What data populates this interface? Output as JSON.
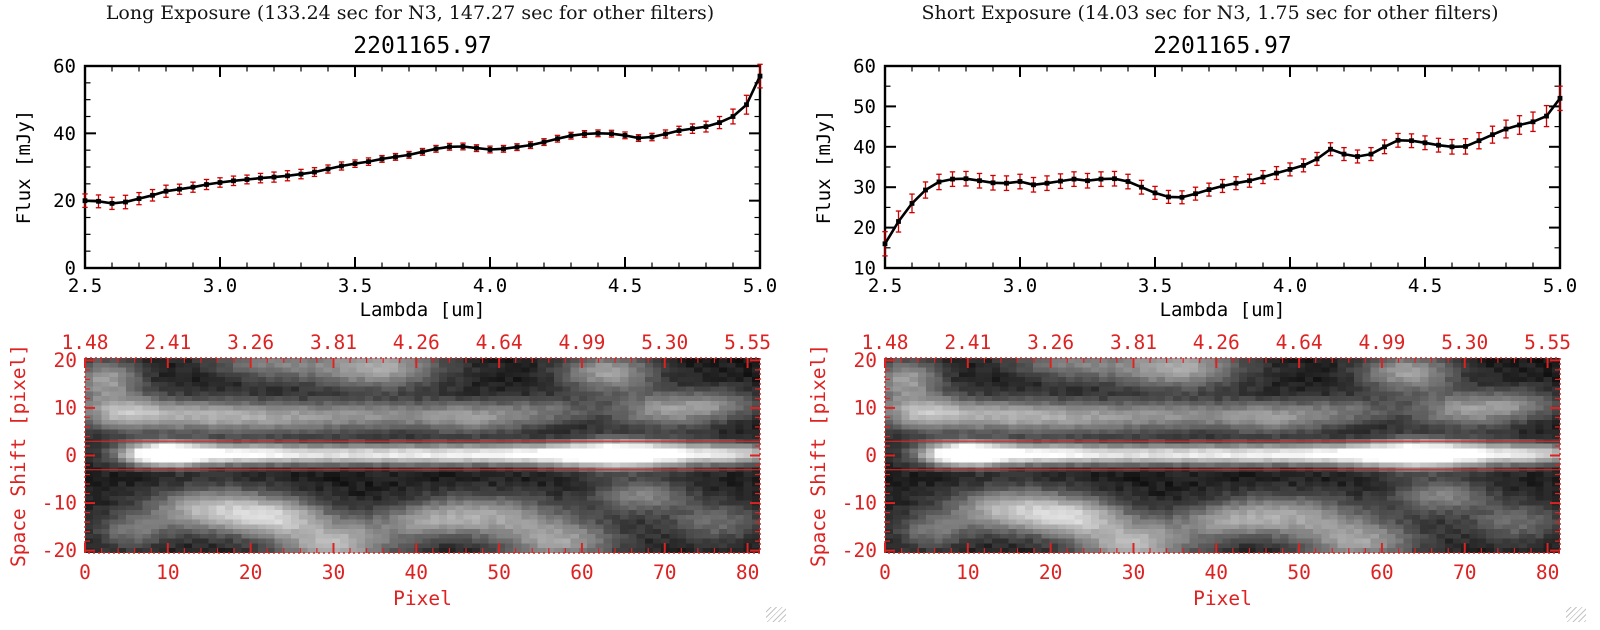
{
  "panels": [
    {
      "title": "Long Exposure (133.24 sec for N3, 147.27 sec for other filters)",
      "spectrum_title": "2201165.97"
    },
    {
      "title": "Short Exposure (14.03 sec for N3, 1.75 sec for other filters)",
      "spectrum_title": "2201165.97"
    }
  ],
  "colors": {
    "background": "#ffffff",
    "spectrum_line": "#000000",
    "error_bar": "#cc0000",
    "image_axis": "#dd2222",
    "aperture_line": "#ee2222",
    "title_text": "#141414"
  },
  "chart_data": [
    {
      "type": "line",
      "name": "long-exposure-spectrum",
      "title": "2201165.97",
      "xlabel": "Lambda [um]",
      "ylabel": "Flux [mJy]",
      "xlim": [
        2.5,
        5.0
      ],
      "ylim": [
        0,
        60
      ],
      "xticks": [
        2.5,
        3.0,
        3.5,
        4.0,
        4.5,
        5.0
      ],
      "xtick_labels": [
        "2.5",
        "3.0",
        "3.5",
        "4.0",
        "4.5",
        "5.0"
      ],
      "yticks": [
        0,
        20,
        40,
        60
      ],
      "x_minor_step": 0.1,
      "y_minor_step": 5,
      "marker": "square",
      "x": [
        2.5,
        2.55,
        2.6,
        2.65,
        2.7,
        2.75,
        2.8,
        2.85,
        2.9,
        2.95,
        3.0,
        3.05,
        3.1,
        3.15,
        3.2,
        3.25,
        3.3,
        3.35,
        3.4,
        3.45,
        3.5,
        3.55,
        3.6,
        3.65,
        3.7,
        3.75,
        3.8,
        3.85,
        3.9,
        3.95,
        4.0,
        4.05,
        4.1,
        4.15,
        4.2,
        4.25,
        4.3,
        4.35,
        4.4,
        4.45,
        4.5,
        4.55,
        4.6,
        4.65,
        4.7,
        4.75,
        4.8,
        4.85,
        4.9,
        4.95,
        5.0
      ],
      "y": [
        20.0,
        19.8,
        19.2,
        19.6,
        20.6,
        21.6,
        22.8,
        23.4,
        24.0,
        24.8,
        25.4,
        25.9,
        26.3,
        26.7,
        27.0,
        27.4,
        27.9,
        28.5,
        29.4,
        30.3,
        31.0,
        31.6,
        32.4,
        33.0,
        33.6,
        34.5,
        35.4,
        36.0,
        36.1,
        35.6,
        35.2,
        35.4,
        35.9,
        36.5,
        37.4,
        38.4,
        39.3,
        39.8,
        40.0,
        39.9,
        39.4,
        38.6,
        38.9,
        39.8,
        40.8,
        41.4,
        42.0,
        43.2,
        45.0,
        48.5,
        57.0
      ],
      "yerr": [
        2.0,
        1.9,
        1.8,
        2.0,
        1.8,
        1.7,
        1.8,
        1.5,
        1.5,
        1.5,
        1.4,
        1.4,
        1.3,
        1.4,
        1.5,
        1.5,
        1.4,
        1.3,
        1.2,
        1.2,
        1.1,
        1.1,
        1.0,
        1.0,
        1.0,
        1.0,
        1.0,
        1.0,
        1.0,
        1.0,
        1.0,
        1.0,
        1.0,
        1.0,
        1.0,
        1.0,
        1.0,
        1.0,
        1.0,
        1.0,
        1.0,
        1.0,
        1.1,
        1.2,
        1.3,
        1.4,
        1.6,
        1.8,
        2.2,
        2.8,
        3.5
      ]
    },
    {
      "type": "heatmap",
      "name": "long-exposure-2d-spectral-image",
      "xlabel": "Pixel",
      "ylabel": "Space Shift [pixel]",
      "xlim": [
        0,
        81.5
      ],
      "ylim": [
        -20.5,
        20.5
      ],
      "xticks": [
        0,
        10,
        20,
        30,
        40,
        50,
        60,
        70,
        80
      ],
      "yticks": [
        -20,
        -10,
        0,
        10,
        20
      ],
      "x_minor_step": 2,
      "y_minor_step": 2,
      "top_axis_labels": [
        "1.48",
        "2.41",
        "3.26",
        "3.81",
        "4.26",
        "4.64",
        "4.99",
        "5.30",
        "5.55"
      ],
      "aperture_lines_y": [
        3,
        -3
      ],
      "colormap": "gray",
      "features_format": [
        "x_pixel",
        "y_space",
        "sigma_x",
        "sigma_y",
        "amplitude"
      ],
      "features": [
        [
          9,
          0.3,
          3.5,
          1.7,
          1.15
        ],
        [
          17,
          0.3,
          6,
          1.5,
          0.65
        ],
        [
          30,
          0.2,
          10,
          1.45,
          0.55
        ],
        [
          45,
          0.2,
          10,
          1.45,
          0.55
        ],
        [
          56,
          0.2,
          7,
          1.5,
          0.5
        ],
        [
          64,
          0.3,
          5,
          2.1,
          0.88
        ],
        [
          72,
          0.3,
          5,
          1.6,
          0.6
        ],
        [
          80,
          0.3,
          4,
          1.5,
          0.55
        ],
        [
          4,
          9,
          4,
          2.6,
          0.5
        ],
        [
          13,
          8.5,
          6,
          2.4,
          0.42
        ],
        [
          24,
          8,
          7,
          2.4,
          0.4
        ],
        [
          36,
          8.5,
          6,
          2.2,
          0.3
        ],
        [
          47,
          8,
          5,
          2.4,
          0.42
        ],
        [
          56,
          9.5,
          4,
          2,
          0.25
        ],
        [
          70,
          9.5,
          4.5,
          2.6,
          0.45
        ],
        [
          77,
          11,
          3.5,
          2.2,
          0.3
        ],
        [
          2,
          16,
          3,
          3,
          0.5
        ],
        [
          22,
          19.5,
          5,
          2.5,
          0.35
        ],
        [
          35,
          18.5,
          5.5,
          3,
          0.55
        ],
        [
          63,
          17.5,
          4,
          3,
          0.5
        ],
        [
          15,
          -11.5,
          5.5,
          3.2,
          0.62
        ],
        [
          23,
          -13,
          4,
          2.8,
          0.5
        ],
        [
          30,
          -18.5,
          5,
          3.5,
          0.6
        ],
        [
          40,
          -14,
          4,
          2.5,
          0.28
        ],
        [
          48,
          -12.5,
          6,
          3,
          0.5
        ],
        [
          57,
          -18,
          5,
          3.2,
          0.5
        ],
        [
          67,
          -8.5,
          4,
          2.5,
          0.38
        ],
        [
          76,
          -14,
          4,
          3,
          0.3
        ],
        [
          5,
          -16,
          3,
          2.5,
          0.3
        ]
      ]
    },
    {
      "type": "line",
      "name": "short-exposure-spectrum",
      "title": "2201165.97",
      "xlabel": "Lambda [um]",
      "ylabel": "Flux [mJy]",
      "xlim": [
        2.5,
        5.0
      ],
      "ylim": [
        10,
        60
      ],
      "xticks": [
        2.5,
        3.0,
        3.5,
        4.0,
        4.5,
        5.0
      ],
      "xtick_labels": [
        "2.5",
        "3.0",
        "3.5",
        "4.0",
        "4.5",
        "5.0"
      ],
      "yticks": [
        10,
        20,
        30,
        40,
        50,
        60
      ],
      "x_minor_step": 0.1,
      "y_minor_step": 5,
      "marker": "square",
      "x": [
        2.5,
        2.55,
        2.6,
        2.65,
        2.7,
        2.75,
        2.8,
        2.85,
        2.9,
        2.95,
        3.0,
        3.05,
        3.1,
        3.15,
        3.2,
        3.25,
        3.3,
        3.35,
        3.4,
        3.45,
        3.5,
        3.55,
        3.6,
        3.65,
        3.7,
        3.75,
        3.8,
        3.85,
        3.9,
        3.95,
        4.0,
        4.05,
        4.1,
        4.15,
        4.2,
        4.25,
        4.3,
        4.35,
        4.4,
        4.45,
        4.5,
        4.55,
        4.6,
        4.65,
        4.7,
        4.75,
        4.8,
        4.85,
        4.9,
        4.95,
        5.0
      ],
      "y": [
        16.0,
        21.5,
        26.0,
        29.3,
        31.3,
        32.0,
        32.1,
        31.6,
        31.1,
        31.0,
        31.4,
        30.6,
        31.0,
        31.5,
        32.0,
        31.6,
        32.0,
        32.1,
        31.4,
        30.0,
        28.6,
        27.6,
        27.5,
        28.4,
        29.4,
        30.3,
        31.0,
        31.6,
        32.5,
        33.5,
        34.4,
        35.4,
        37.0,
        39.4,
        38.2,
        37.6,
        38.2,
        40.0,
        41.6,
        41.5,
        41.0,
        40.4,
        40.0,
        40.1,
        41.5,
        43.0,
        44.4,
        45.4,
        46.2,
        47.6,
        52.0
      ],
      "yerr": [
        3.0,
        2.6,
        2.3,
        2.0,
        1.9,
        1.8,
        1.8,
        1.8,
        1.8,
        1.8,
        1.8,
        1.8,
        1.8,
        1.8,
        1.8,
        1.8,
        1.8,
        1.8,
        1.8,
        1.7,
        1.6,
        1.6,
        1.6,
        1.6,
        1.6,
        1.6,
        1.6,
        1.6,
        1.6,
        1.6,
        1.6,
        1.6,
        1.6,
        1.6,
        1.6,
        1.6,
        1.6,
        1.7,
        1.7,
        1.7,
        1.7,
        1.7,
        1.8,
        1.9,
        2.0,
        2.1,
        2.2,
        2.3,
        2.4,
        2.6,
        3.0
      ]
    },
    {
      "type": "heatmap",
      "name": "short-exposure-2d-spectral-image",
      "xlabel": "Pixel",
      "ylabel": "Space Shift [pixel]",
      "xlim": [
        0,
        81.5
      ],
      "ylim": [
        -20.5,
        20.5
      ],
      "xticks": [
        0,
        10,
        20,
        30,
        40,
        50,
        60,
        70,
        80
      ],
      "yticks": [
        -20,
        -10,
        0,
        10,
        20
      ],
      "x_minor_step": 2,
      "y_minor_step": 2,
      "top_axis_labels": [
        "1.48",
        "2.41",
        "3.26",
        "3.81",
        "4.26",
        "4.64",
        "4.99",
        "5.30",
        "5.55"
      ],
      "aperture_lines_y": [
        3,
        -3
      ],
      "colormap": "gray",
      "features_format": [
        "x_pixel",
        "y_space",
        "sigma_x",
        "sigma_y",
        "amplitude"
      ],
      "features": [
        [
          9,
          0.3,
          3.5,
          1.7,
          1.15
        ],
        [
          17,
          0.3,
          6,
          1.5,
          0.65
        ],
        [
          30,
          0.2,
          10,
          1.45,
          0.55
        ],
        [
          45,
          0.2,
          10,
          1.45,
          0.55
        ],
        [
          56,
          0.2,
          7,
          1.5,
          0.5
        ],
        [
          64,
          0.3,
          5,
          2.1,
          0.88
        ],
        [
          72,
          0.3,
          5,
          1.6,
          0.6
        ],
        [
          80,
          0.3,
          4,
          1.5,
          0.55
        ],
        [
          4,
          9,
          4,
          2.6,
          0.5
        ],
        [
          13,
          8.5,
          6,
          2.4,
          0.42
        ],
        [
          24,
          8,
          7,
          2.4,
          0.4
        ],
        [
          36,
          8.5,
          6,
          2.2,
          0.3
        ],
        [
          47,
          8,
          5,
          2.4,
          0.42
        ],
        [
          56,
          9.5,
          4,
          2,
          0.25
        ],
        [
          70,
          9.5,
          4.5,
          2.6,
          0.45
        ],
        [
          77,
          11,
          3.5,
          2.2,
          0.3
        ],
        [
          2,
          16,
          3,
          3,
          0.5
        ],
        [
          22,
          19.5,
          5,
          2.5,
          0.35
        ],
        [
          35,
          18.5,
          5.5,
          3,
          0.55
        ],
        [
          63,
          17.5,
          4,
          3,
          0.5
        ],
        [
          15,
          -11.5,
          5.5,
          3.2,
          0.62
        ],
        [
          23,
          -13,
          4,
          2.8,
          0.5
        ],
        [
          30,
          -18.5,
          5,
          3.5,
          0.6
        ],
        [
          40,
          -14,
          4,
          2.5,
          0.28
        ],
        [
          48,
          -12.5,
          6,
          3,
          0.5
        ],
        [
          57,
          -18,
          5,
          3.2,
          0.5
        ],
        [
          67,
          -8.5,
          4,
          2.5,
          0.38
        ],
        [
          76,
          -14,
          4,
          3,
          0.3
        ],
        [
          5,
          -16,
          3,
          2.5,
          0.3
        ]
      ]
    }
  ]
}
